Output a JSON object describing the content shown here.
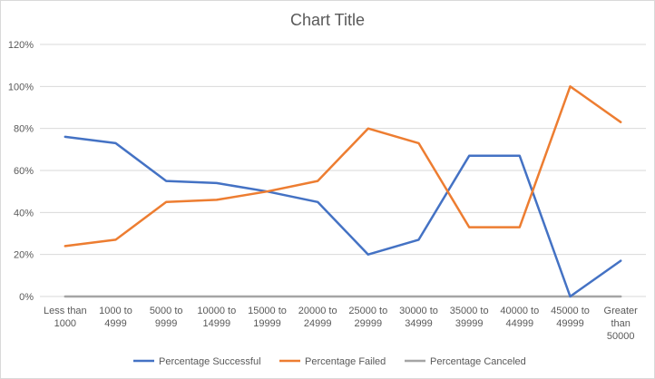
{
  "chart_data": {
    "type": "line",
    "title": "Chart Title",
    "categories": [
      [
        "Less than",
        "1000"
      ],
      [
        "1000 to",
        "4999"
      ],
      [
        "5000 to",
        "9999"
      ],
      [
        "10000 to",
        "14999"
      ],
      [
        "15000 to",
        "19999"
      ],
      [
        "20000 to",
        "24999"
      ],
      [
        "25000 to",
        "29999"
      ],
      [
        "30000 to",
        "34999"
      ],
      [
        "35000 to",
        "39999"
      ],
      [
        "40000 to",
        "44999"
      ],
      [
        "45000 to",
        "49999"
      ],
      [
        "Greater",
        "than",
        "50000"
      ]
    ],
    "yticks": [
      "0%",
      "20%",
      "40%",
      "60%",
      "80%",
      "100%",
      "120%"
    ],
    "ylim": [
      0,
      120
    ],
    "grid": true,
    "legend_position": "bottom",
    "series": [
      {
        "name": "Percentage Successful",
        "color": "#4472C4",
        "values": [
          76,
          73,
          55,
          54,
          50,
          45,
          20,
          27,
          67,
          67,
          0,
          17
        ]
      },
      {
        "name": "Percentage Failed",
        "color": "#ED7D31",
        "values": [
          24,
          27,
          45,
          46,
          50,
          55,
          80,
          73,
          33,
          33,
          100,
          83
        ]
      },
      {
        "name": "Percentage Canceled",
        "color": "#A5A5A5",
        "values": [
          0,
          0,
          0,
          0,
          0,
          0,
          0,
          0,
          0,
          0,
          0,
          0
        ]
      }
    ]
  }
}
